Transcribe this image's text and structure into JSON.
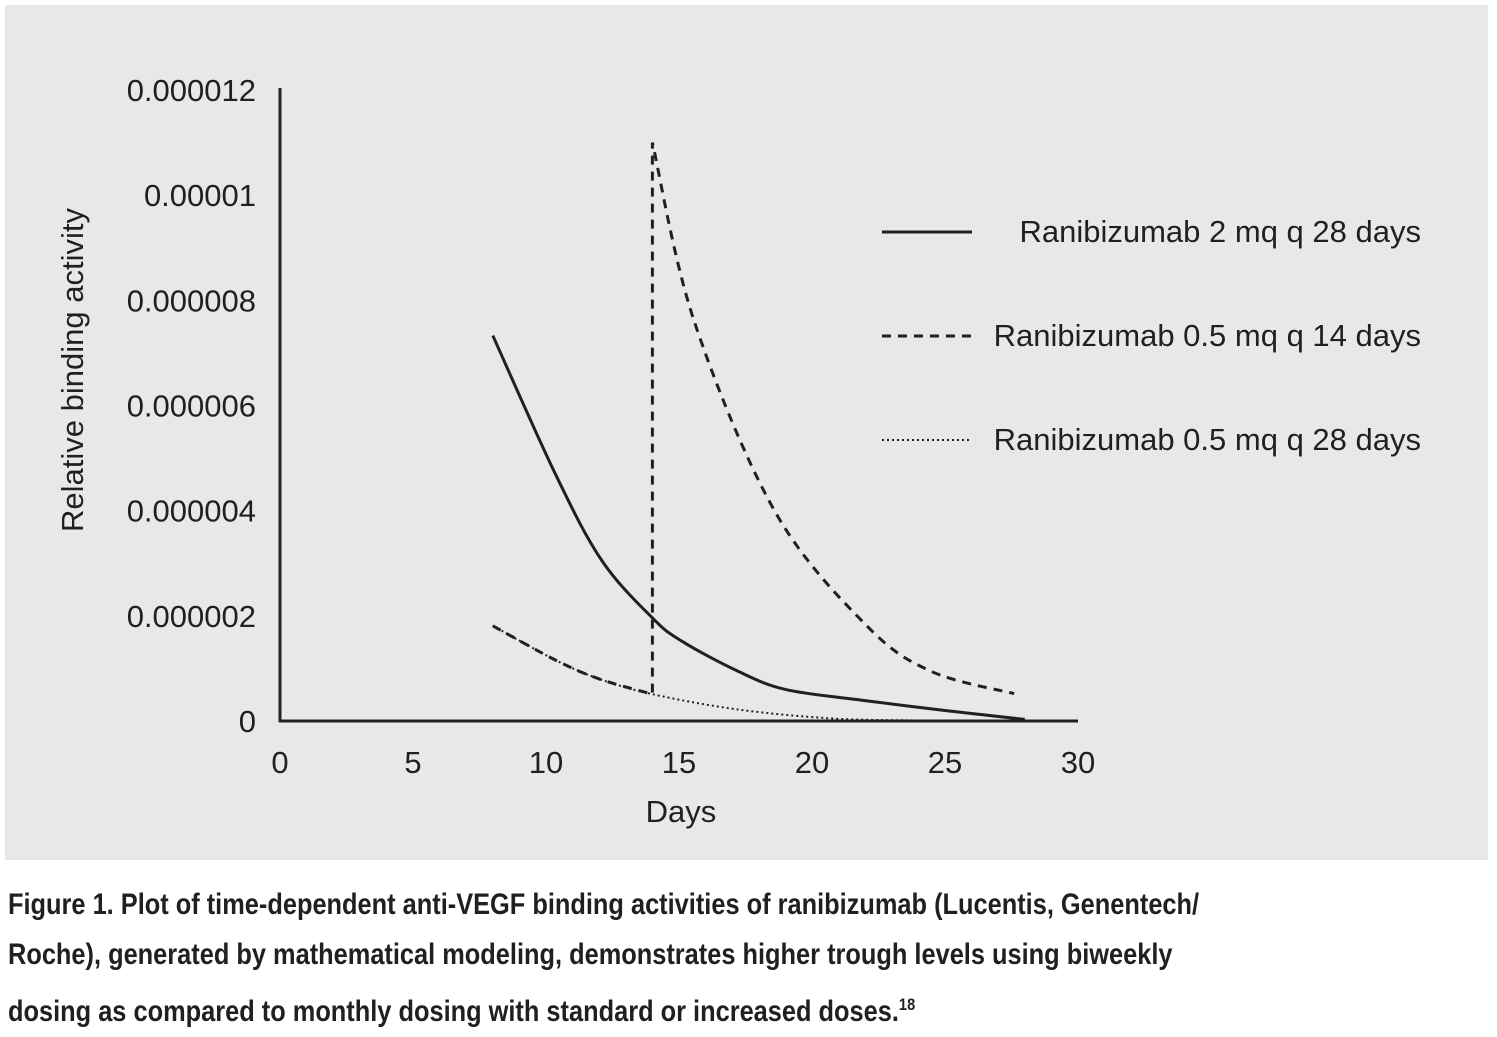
{
  "chart_data": {
    "type": "line",
    "title": "",
    "xlabel": "Days",
    "ylabel": "Relative binding activity",
    "xlim": [
      0,
      30
    ],
    "ylim": [
      0,
      1.2e-05
    ],
    "x_ticks": [
      "0",
      "5",
      "10",
      "15",
      "20",
      "25",
      "30"
    ],
    "x_tick_values": [
      0,
      5,
      10,
      15,
      20,
      25,
      30
    ],
    "y_ticks": [
      "0",
      "0.000002",
      "0.000004",
      "0.000006",
      "0.000008",
      "0.00001",
      "0.000012"
    ],
    "y_tick_values": [
      0,
      2e-06,
      4e-06,
      6e-06,
      8e-06,
      1e-05,
      1.2e-05
    ],
    "grid": false,
    "legend_position": "top-right",
    "series": [
      {
        "name": "Ranibizumab 2 mq q 28 days",
        "style": "solid",
        "x": [
          8,
          10.35,
          12.1,
          14,
          15.1,
          17.2,
          19,
          21.8,
          25,
          28
        ],
        "y": [
          7.33e-06,
          4.7e-06,
          3.05e-06,
          1.96e-06,
          1.52e-06,
          9.5e-07,
          6e-07,
          4e-07,
          2e-07,
          3e-08
        ]
      },
      {
        "name": "Ranibizumab 0.5 mq q 14 days",
        "style": "dashed",
        "x": [
          8,
          10.35,
          12,
          14,
          14,
          15.56,
          18.6,
          22.06,
          24.5,
          27.6
        ],
        "y": [
          1.81e-06,
          1.16e-06,
          8e-07,
          5.1e-07,
          1.1e-05,
          7.62e-06,
          3.99e-06,
          1.81e-06,
          9.4e-07,
          5.2e-07
        ]
      },
      {
        "name": "Ranibizumab 0.5 mq q 28 days",
        "style": "dotted",
        "x": [
          8,
          10.35,
          12,
          14,
          17.2,
          20.7,
          24,
          28
        ],
        "y": [
          1.81e-06,
          1.16e-06,
          8e-07,
          5.1e-07,
          2.2e-07,
          5e-08,
          1e-08,
          0
        ]
      }
    ]
  },
  "caption": {
    "text": "Figure 1. Plot of time-dependent anti-VEGF binding activities of ranibizumab (Lucentis, Genentech/ Roche), generated by mathematical modeling, demonstrates higher trough levels using biweekly dosing as compared to monthly dosing with standard or increased doses.",
    "line1": "Figure 1. Plot of time-dependent anti-VEGF binding activities of ranibizumab (Lucentis, Genentech/",
    "line2": "Roche), generated by mathematical modeling, demonstrates higher trough levels using biweekly",
    "line3": "dosing as compared to monthly dosing with standard or increased doses.",
    "ref": "18"
  }
}
